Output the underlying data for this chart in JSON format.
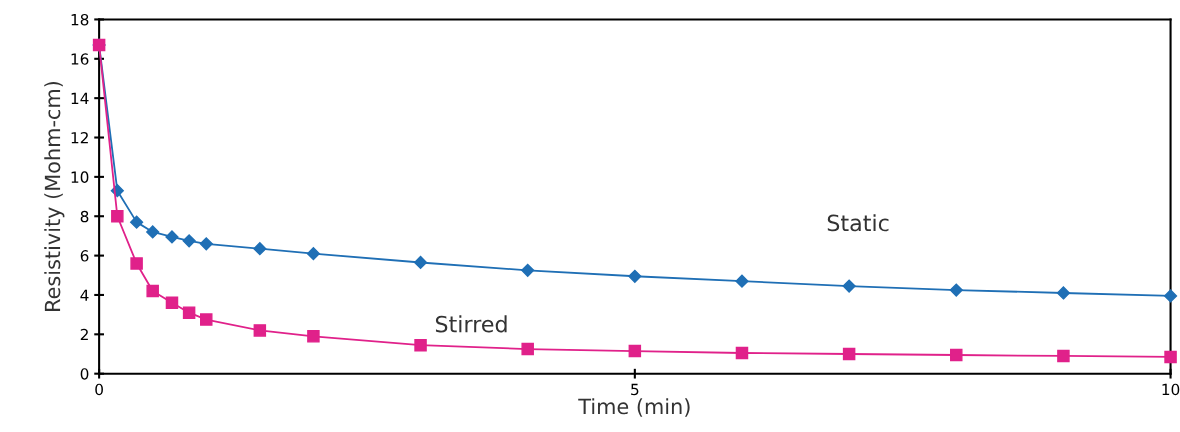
{
  "chart_data": {
    "type": "line",
    "xlabel": "Time (min)",
    "ylabel": "Resistivity (Mohm-cm)",
    "x": [
      0,
      0.17,
      0.35,
      0.5,
      0.68,
      0.84,
      1.0,
      1.5,
      2.0,
      3.0,
      4.0,
      5.0,
      6.0,
      7.0,
      8.0,
      9.0,
      10.0
    ],
    "series": [
      {
        "name": "Static",
        "color": "#1f6fb5",
        "marker": "diamond",
        "values": [
          16.7,
          9.3,
          7.7,
          7.2,
          6.95,
          6.75,
          6.6,
          6.35,
          6.1,
          5.65,
          5.25,
          4.95,
          4.7,
          4.45,
          4.25,
          4.1,
          3.95
        ]
      },
      {
        "name": "Stirred",
        "color": "#e0218a",
        "marker": "square",
        "values": [
          16.7,
          8.0,
          5.6,
          4.2,
          3.6,
          3.1,
          2.75,
          2.2,
          1.9,
          1.45,
          1.25,
          1.15,
          1.05,
          1.0,
          0.95,
          0.9,
          0.85
        ]
      }
    ],
    "xlim": [
      0,
      10
    ],
    "xticks": [
      0,
      5,
      10
    ],
    "ylim": [
      0,
      18
    ],
    "yticks": [
      0,
      2,
      4,
      6,
      8,
      10,
      12,
      14,
      16,
      18
    ],
    "grid": false,
    "legend": false,
    "line_style": "solid"
  }
}
